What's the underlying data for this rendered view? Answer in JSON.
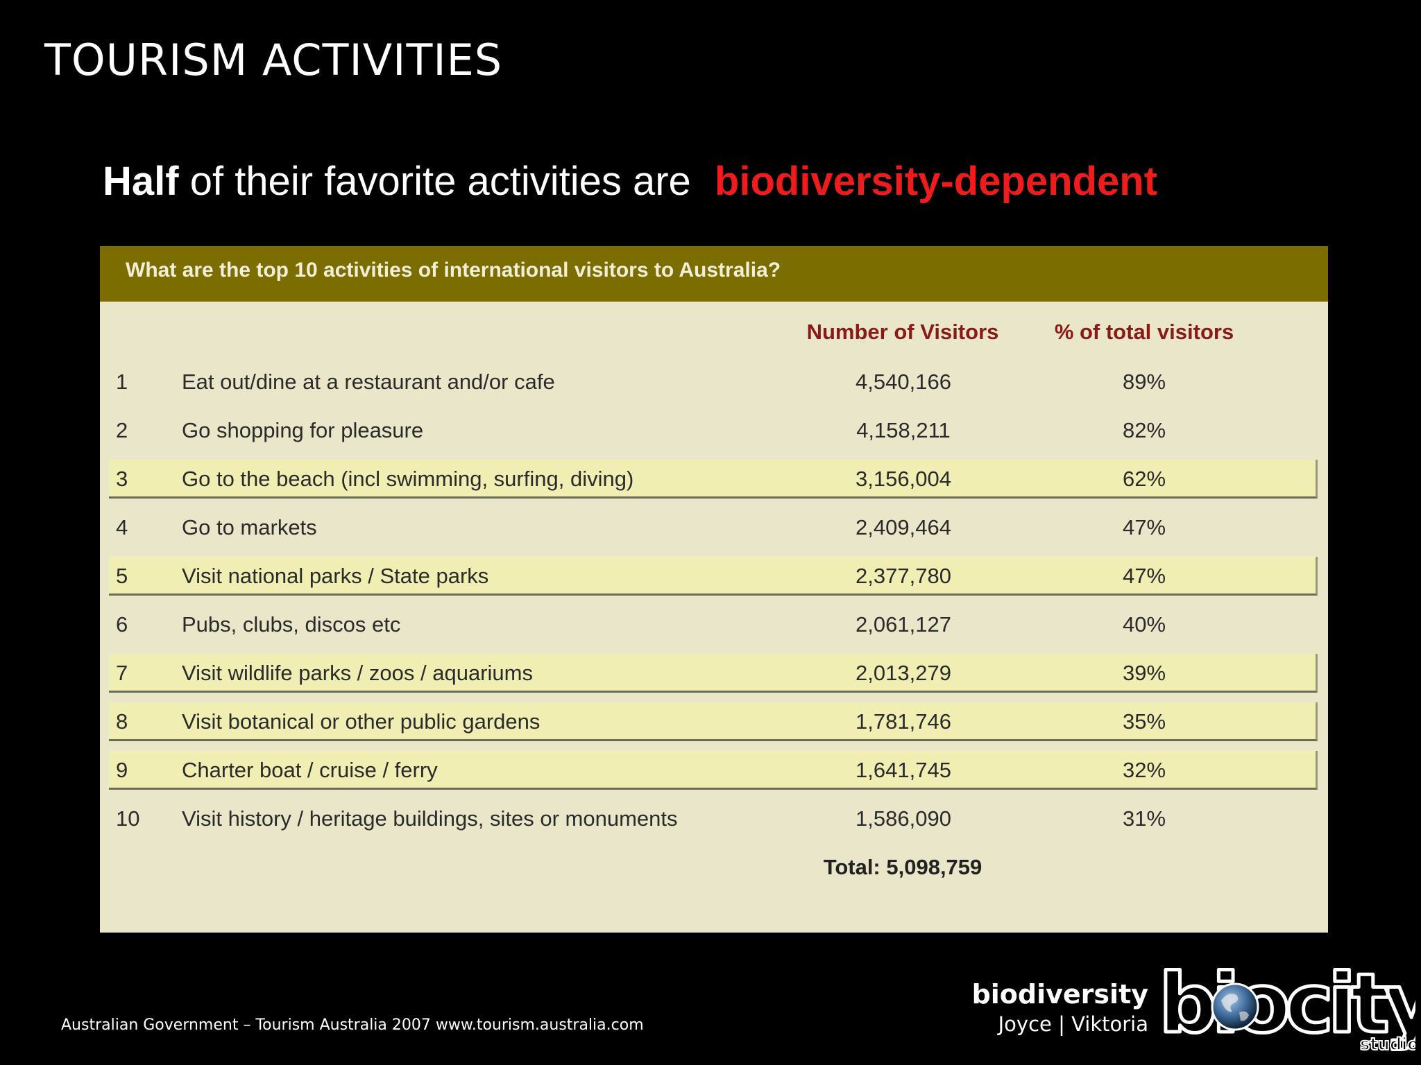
{
  "slide": {
    "title": "TOURISM ACTIVITIES",
    "subtitle_bold": "Half",
    "subtitle_rest": "of their favorite activities are",
    "subtitle_highlight": "biodiversity-dependent"
  },
  "table": {
    "question": "What are the top 10 activities of international visitors to Australia?",
    "columns": {
      "visitors": "Number of Visitors",
      "percent": "% of total visitors"
    },
    "rows": [
      {
        "rank": "1",
        "activity": "Eat out/dine at a restaurant and/or cafe",
        "visitors": "4,540,166",
        "percent": "89%"
      },
      {
        "rank": "2",
        "activity": "Go shopping for pleasure",
        "visitors": "4,158,211",
        "percent": "82%"
      },
      {
        "rank": "3",
        "activity": "Go to the beach (incl swimming, surfing, diving)",
        "visitors": "3,156,004",
        "percent": "62%"
      },
      {
        "rank": "4",
        "activity": "Go to markets",
        "visitors": "2,409,464",
        "percent": "47%"
      },
      {
        "rank": "5",
        "activity": "Visit national parks / State parks",
        "visitors": "2,377,780",
        "percent": "47%"
      },
      {
        "rank": "6",
        "activity": "Pubs, clubs, discos etc",
        "visitors": "2,061,127",
        "percent": "40%"
      },
      {
        "rank": "7",
        "activity": "Visit wildlife parks / zoos / aquariums",
        "visitors": "2,013,279",
        "percent": "39%"
      },
      {
        "rank": "8",
        "activity": "Visit botanical or other public gardens",
        "visitors": "1,781,746",
        "percent": "35%"
      },
      {
        "rank": "9",
        "activity": "Charter boat / cruise / ferry",
        "visitors": "1,641,745",
        "percent": "32%"
      },
      {
        "rank": "10",
        "activity": "Visit history / heritage buildings, sites or monuments",
        "visitors": "1,586,090",
        "percent": "31%"
      }
    ],
    "total": "Total: 5,098,759"
  },
  "footer": {
    "source": "Australian Government – Tourism Australia 2007 www.tourism.australia.com",
    "brand_name": "biodiversity",
    "brand_authors": "Joyce  |  Viktoria",
    "logo_text": "biocity",
    "logo_sub": "studio",
    "logo_icon": "earth-globe-icon"
  },
  "colors": {
    "background": "#000000",
    "highlight_red": "#ee1c1c",
    "table_header": "#7b6d00",
    "table_body": "#e9e6c9",
    "row_highlight": "#f0eeb3",
    "column_header": "#8a1a1a"
  }
}
